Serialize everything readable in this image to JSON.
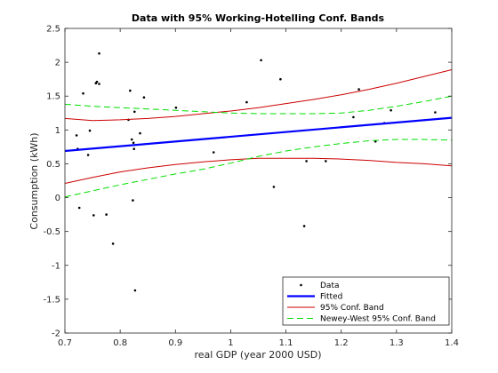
{
  "chart_data": {
    "type": "scatter",
    "title": "Data with 95% Working-Hotelling Conf. Bands",
    "xlabel": "real GDP (year 2000 USD)",
    "ylabel": "Consumption (kWh)",
    "xlim": [
      0.7,
      1.4
    ],
    "ylim": [
      -2,
      2.5
    ],
    "xticks": [
      "0.7",
      "0.8",
      "0.9",
      "1",
      "1.1",
      "1.2",
      "1.3",
      "1.4"
    ],
    "yticks": [
      "-2",
      "-1.5",
      "-1",
      "-0.5",
      "0",
      "0.5",
      "1",
      "1.5",
      "2",
      "2.5"
    ],
    "grid": false,
    "legend_position": "bottom-right",
    "legend": [
      "Data",
      "Fitted",
      "95% Conf. Band",
      "Newey-West 95% Conf. Band"
    ],
    "series": [
      {
        "name": "Data",
        "kind": "points",
        "color": "#000000",
        "x": [
          0.721,
          0.723,
          0.726,
          0.733,
          0.742,
          0.745,
          0.752,
          0.756,
          0.758,
          0.762,
          0.762,
          0.775,
          0.787,
          0.815,
          0.818,
          0.821,
          0.823,
          0.824,
          0.825,
          0.826,
          0.827,
          0.836,
          0.843,
          0.901,
          0.969,
          1.029,
          1.055,
          1.078,
          1.09,
          1.133,
          1.137,
          1.172,
          1.222,
          1.232,
          1.262,
          1.278,
          1.29,
          1.37
        ],
        "y": [
          0.92,
          0.72,
          -0.15,
          1.54,
          0.63,
          0.99,
          -0.26,
          1.69,
          1.71,
          2.13,
          1.68,
          -0.25,
          -0.68,
          1.15,
          1.58,
          0.86,
          -0.04,
          0.81,
          0.72,
          1.27,
          -1.37,
          0.95,
          1.48,
          1.33,
          0.67,
          1.41,
          2.03,
          0.16,
          1.75,
          -0.42,
          0.54,
          0.54,
          1.19,
          1.6,
          0.83,
          1.1,
          1.29,
          1.26
        ]
      },
      {
        "name": "Fitted",
        "kind": "line",
        "color": "#0000ff",
        "style": "solid",
        "x": [
          0.7,
          1.4
        ],
        "y": [
          0.69,
          1.18
        ]
      },
      {
        "name": "95% Conf. Band",
        "kind": "band",
        "color": "#cc0000",
        "style": "solid",
        "x": [
          0.7,
          0.75,
          0.8,
          0.85,
          0.9,
          0.95,
          1.0,
          1.05,
          1.1,
          1.15,
          1.2,
          1.25,
          1.3,
          1.35,
          1.4
        ],
        "upper": [
          1.17,
          1.14,
          1.15,
          1.17,
          1.2,
          1.24,
          1.28,
          1.33,
          1.39,
          1.45,
          1.52,
          1.6,
          1.69,
          1.79,
          1.89
        ],
        "lower": [
          0.21,
          0.3,
          0.38,
          0.44,
          0.49,
          0.53,
          0.56,
          0.58,
          0.58,
          0.58,
          0.57,
          0.55,
          0.52,
          0.5,
          0.47
        ]
      },
      {
        "name": "Newey-West 95% Conf. Band",
        "kind": "band",
        "color": "#00dd00",
        "style": "dashed",
        "x": [
          0.7,
          0.75,
          0.8,
          0.85,
          0.9,
          0.95,
          1.0,
          1.05,
          1.1,
          1.15,
          1.2,
          1.25,
          1.3,
          1.35,
          1.4
        ],
        "upper": [
          1.38,
          1.35,
          1.33,
          1.31,
          1.29,
          1.27,
          1.25,
          1.24,
          1.24,
          1.24,
          1.25,
          1.29,
          1.35,
          1.42,
          1.5
        ],
        "lower": [
          0.01,
          0.1,
          0.19,
          0.27,
          0.35,
          0.42,
          0.51,
          0.61,
          0.69,
          0.75,
          0.8,
          0.84,
          0.86,
          0.86,
          0.85
        ]
      }
    ]
  }
}
